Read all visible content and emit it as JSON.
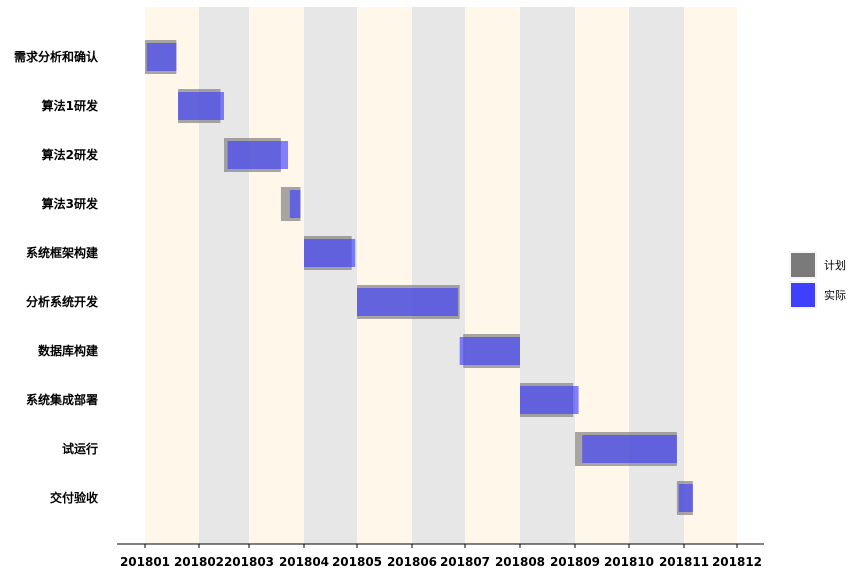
{
  "chart_data": {
    "type": "gantt",
    "title": "",
    "xlabel": "",
    "ylabel": "",
    "x_ticks": [
      "201801",
      "201802",
      "201803",
      "201804",
      "201805",
      "201806",
      "201807",
      "201808",
      "201809",
      "201810",
      "201811",
      "201812"
    ],
    "tasks": [
      {
        "name": "需求分析和确认",
        "plan": [
          "2018-01-01",
          "2018-01-19"
        ],
        "actual": [
          "2018-01-02",
          "2018-01-19"
        ]
      },
      {
        "name": "算法1研发",
        "plan": [
          "2018-01-20",
          "2018-02-13"
        ],
        "actual": [
          "2018-01-20",
          "2018-02-15"
        ]
      },
      {
        "name": "算法2研发",
        "plan": [
          "2018-02-15",
          "2018-03-19"
        ],
        "actual": [
          "2018-02-17",
          "2018-03-23"
        ]
      },
      {
        "name": "算法3研发",
        "plan": [
          "2018-03-19",
          "2018-03-30"
        ],
        "actual": [
          "2018-03-24",
          "2018-03-30"
        ]
      },
      {
        "name": "系统框架构建",
        "plan": [
          "2018-04-01",
          "2018-04-28"
        ],
        "actual": [
          "2018-04-01",
          "2018-04-30"
        ]
      },
      {
        "name": "分析系统开发",
        "plan": [
          "2018-05-01",
          "2018-06-28"
        ],
        "actual": [
          "2018-05-01",
          "2018-06-27"
        ]
      },
      {
        "name": "数据库构建",
        "plan": [
          "2018-06-30",
          "2018-08-01"
        ],
        "actual": [
          "2018-06-28",
          "2018-08-01"
        ]
      },
      {
        "name": "系统集成部署",
        "plan": [
          "2018-08-01",
          "2018-08-31"
        ],
        "actual": [
          "2018-08-01",
          "2018-09-03"
        ]
      },
      {
        "name": "试运行",
        "plan": [
          "2018-09-01",
          "2018-10-28"
        ],
        "actual": [
          "2018-09-05",
          "2018-10-28"
        ]
      },
      {
        "name": "交付验收",
        "plan": [
          "2018-10-28",
          "2018-11-06"
        ],
        "actual": [
          "2018-10-29",
          "2018-11-06"
        ]
      }
    ],
    "legend": [
      {
        "label": "计划",
        "color": "#7a7a7a"
      },
      {
        "label": "实际",
        "color": "#3f3fff"
      }
    ],
    "legend_position": "right",
    "colors": {
      "plan": "#7a7a7a",
      "actual": "#3f3fff",
      "band_light": "#fef7ea",
      "band_dark": "#e7e7e7"
    }
  }
}
